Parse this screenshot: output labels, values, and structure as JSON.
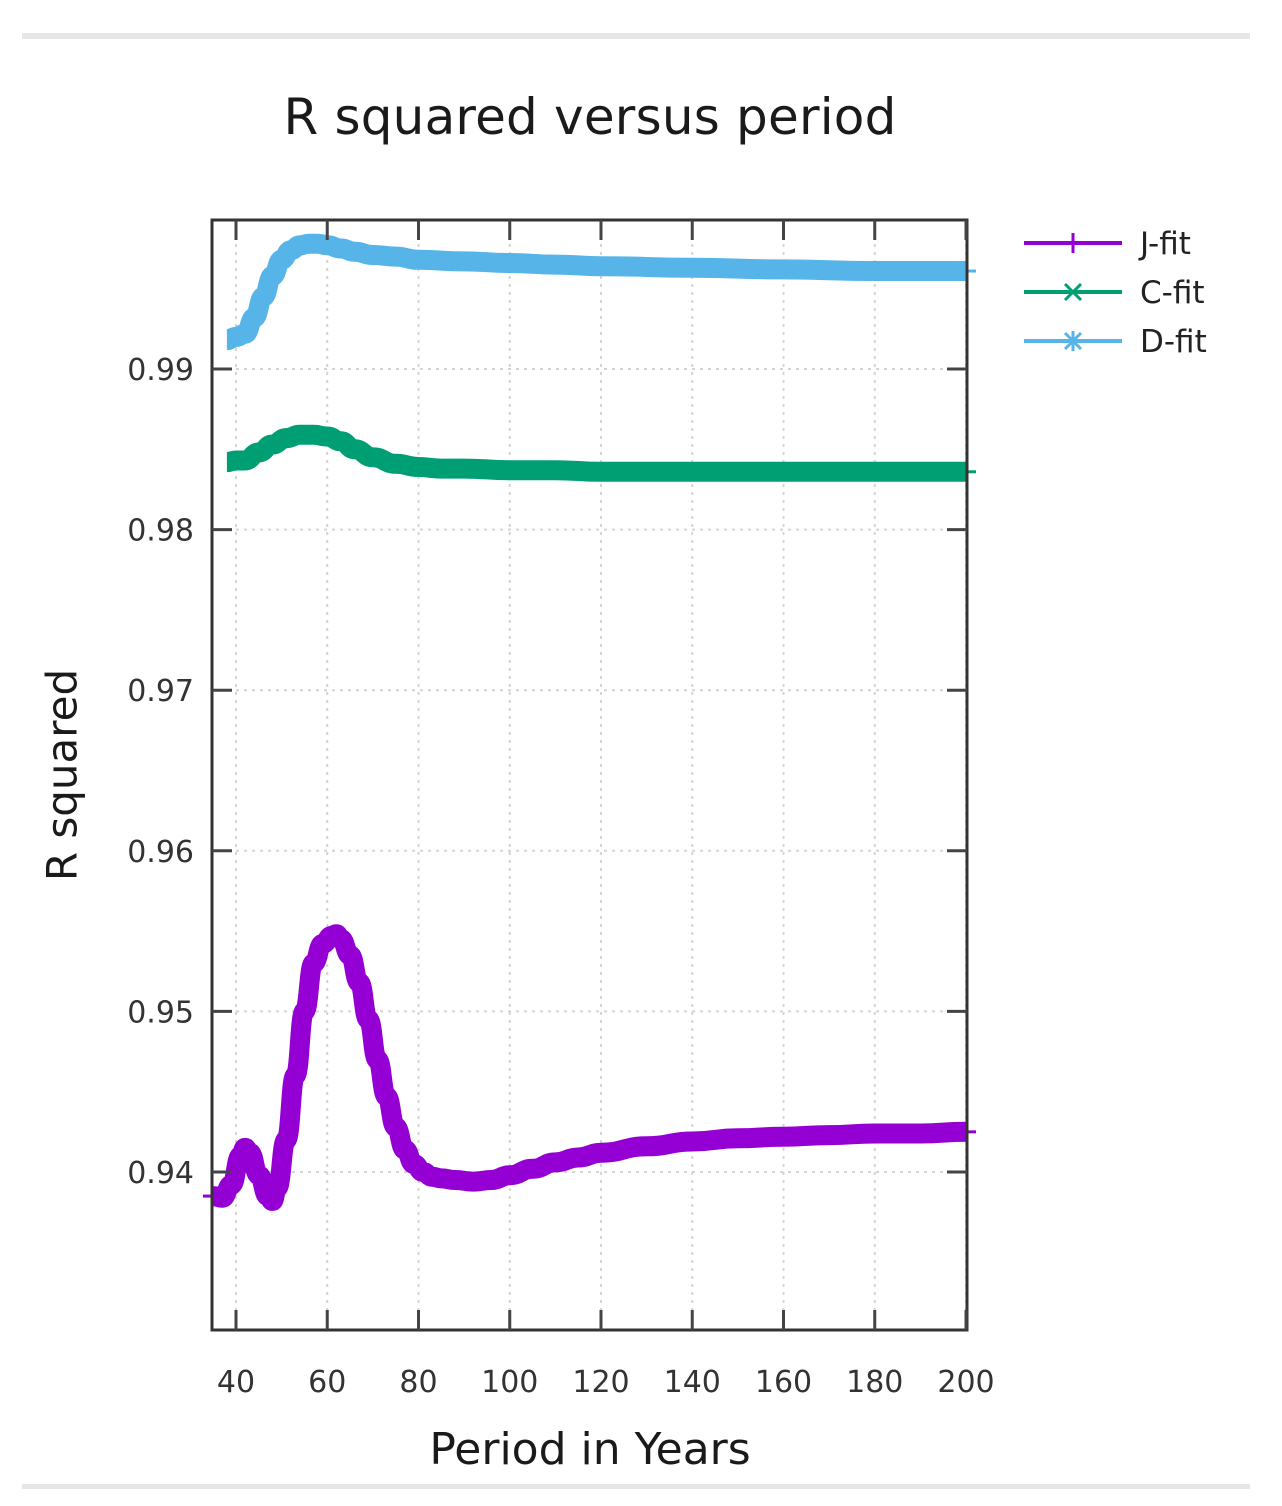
{
  "chart_data": {
    "type": "line",
    "title": "R squared versus period",
    "xlabel": "Period in Years",
    "ylabel": "R squared",
    "xlim": [
      34.7,
      200
    ],
    "ylim": [
      0.9302,
      0.9993
    ],
    "x_ticks": [
      40,
      60,
      80,
      100,
      120,
      140,
      160,
      180,
      200
    ],
    "y_ticks": [
      0.94,
      0.95,
      0.96,
      0.97,
      0.98,
      0.99
    ],
    "y_tick_labels": [
      "0.94",
      "0.95",
      "0.96",
      "0.97",
      "0.98",
      "0.99"
    ],
    "grid": true,
    "grid_style": "dotted",
    "legend_position": "outside-right-top",
    "series": [
      {
        "name": "J-fit",
        "color": "#9400d3",
        "marker": "plus",
        "x": [
          35,
          37,
          39,
          41,
          42,
          43,
          45,
          47,
          48,
          49,
          51,
          53,
          55,
          57,
          59,
          61,
          62,
          63,
          65,
          67,
          69,
          71,
          73,
          75,
          77,
          79,
          81,
          83,
          85,
          88,
          92,
          96,
          100,
          105,
          110,
          115,
          120,
          130,
          140,
          150,
          160,
          170,
          180,
          190,
          200
        ],
        "values": [
          0.9385,
          0.9384,
          0.9392,
          0.941,
          0.9415,
          0.9412,
          0.9398,
          0.9385,
          0.9382,
          0.939,
          0.942,
          0.946,
          0.95,
          0.953,
          0.9542,
          0.9547,
          0.9548,
          0.9545,
          0.9535,
          0.9518,
          0.9495,
          0.947,
          0.9447,
          0.9428,
          0.9414,
          0.9405,
          0.94,
          0.9397,
          0.9396,
          0.9395,
          0.9394,
          0.9395,
          0.9398,
          0.9402,
          0.9406,
          0.9409,
          0.9412,
          0.9416,
          0.9419,
          0.9421,
          0.9422,
          0.9423,
          0.9424,
          0.9424,
          0.9425
        ]
      },
      {
        "name": "C-fit",
        "color": "#009e73",
        "marker": "cross",
        "x": [
          38,
          40,
          42,
          45,
          48,
          51,
          54,
          57,
          60,
          63,
          66,
          70,
          75,
          80,
          85,
          90,
          100,
          110,
          120,
          140,
          160,
          180,
          200
        ],
        "values": [
          0.9842,
          0.9843,
          0.9843,
          0.9848,
          0.9853,
          0.9857,
          0.9859,
          0.9859,
          0.9858,
          0.9855,
          0.985,
          0.9845,
          0.9841,
          0.9839,
          0.9838,
          0.9838,
          0.9837,
          0.9837,
          0.9836,
          0.9836,
          0.9836,
          0.9836,
          0.9836
        ]
      },
      {
        "name": "D-fit",
        "color": "#56b4e9",
        "marker": "star",
        "x": [
          38,
          40,
          42,
          44,
          46,
          48,
          50,
          52,
          54,
          56,
          58,
          60,
          63,
          66,
          70,
          75,
          80,
          90,
          100,
          110,
          120,
          140,
          160,
          180,
          200
        ],
        "values": [
          0.9918,
          0.992,
          0.9922,
          0.9932,
          0.9945,
          0.9958,
          0.9968,
          0.9974,
          0.9977,
          0.9978,
          0.9978,
          0.9977,
          0.9975,
          0.9973,
          0.9971,
          0.997,
          0.9968,
          0.9967,
          0.9966,
          0.9965,
          0.9964,
          0.9963,
          0.9962,
          0.9961,
          0.9961
        ]
      }
    ]
  },
  "header": {
    "title": "R squared versus period"
  },
  "axes": {
    "xlabel": "Period in Years",
    "ylabel": "R squared"
  },
  "legend": {
    "items": [
      {
        "label": "J-fit",
        "color": "#9400d3"
      },
      {
        "label": "C-fit",
        "color": "#009e73"
      },
      {
        "label": "D-fit",
        "color": "#56b4e9"
      }
    ]
  }
}
